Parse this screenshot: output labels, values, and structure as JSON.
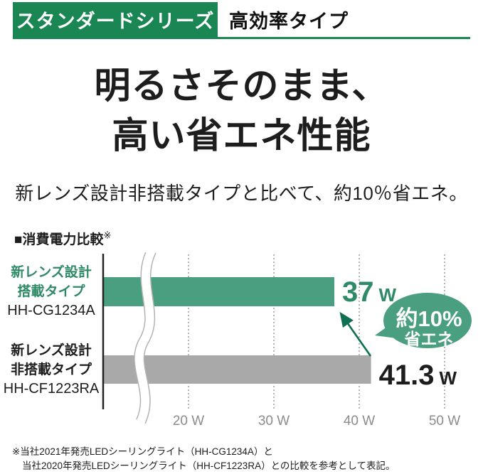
{
  "header": {
    "series_badge": "スタンダードシリーズ",
    "type_label": "高効率タイプ",
    "accent_color": "#1a8653"
  },
  "headline": {
    "line1": "明るさそのまま、",
    "line2": "高い省エネ性能",
    "subtitle": "新レンズ設計非搭載タイプと比べて、約10％省エネ。"
  },
  "chart_data": {
    "type": "bar",
    "orientation": "horizontal",
    "title": "■消費電力比較",
    "title_mark": "※",
    "unit": "W",
    "x_axis": {
      "min": 10,
      "max": 55,
      "ticks": [
        20,
        30,
        40,
        50
      ],
      "tick_labels": [
        "20 W",
        "30 W",
        "40 W",
        "50 W"
      ],
      "gridlines": "dotted",
      "axis_break": true
    },
    "bars": [
      {
        "label_lines": [
          "新レンズ設計",
          "搭載タイプ"
        ],
        "model": "HH-CG1234A",
        "value": 37,
        "value_label": "37",
        "unit": "W",
        "color": "#4a9f80",
        "value_color": "#2f8a68"
      },
      {
        "label_lines": [
          "新レンズ設計",
          "非搭載タイプ"
        ],
        "model": "HH-CF1223RA",
        "value": 41.3,
        "value_label": "41.3",
        "unit": "W",
        "color": "#a9a9a9",
        "value_color": "#1d1d1d"
      }
    ],
    "annotation": {
      "line1": "約10%",
      "line2": "省エネ",
      "color": "#4a9f80",
      "arrow_color": "#0f6f52",
      "text_color": "#ffffff"
    }
  },
  "footnote": {
    "line1": "※当社2021年発売LEDシーリングライト（HH-CG1234A）と",
    "line2": "当社2020年発売LEDシーリングライト（HH-CF1223RA）との比較を参考として表記。"
  }
}
